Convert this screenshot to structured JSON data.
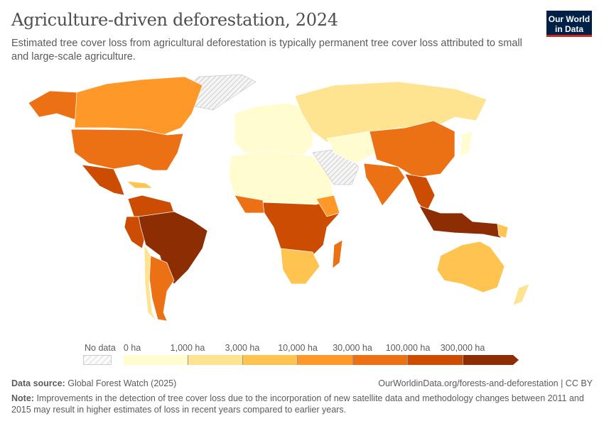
{
  "header": {
    "title": "Agriculture-driven deforestation, 2024",
    "subtitle": "Estimated tree cover loss from agricultural deforestation is typically permanent tree cover loss attributed to small and large-scale agriculture.",
    "logo": "Our World in Data"
  },
  "legend": {
    "no_data": "No data",
    "ticks": [
      "0 ha",
      "1,000 ha",
      "3,000 ha",
      "10,000 ha",
      "30,000 ha",
      "100,000 ha",
      "300,000 ha"
    ],
    "colors": [
      "#fffccf",
      "#fee391",
      "#fec44f",
      "#fe9929",
      "#ec7014",
      "#cc4c02",
      "#8c2d04"
    ]
  },
  "footer": {
    "source_label": "Data source:",
    "source": "Global Forest Watch (2025)",
    "url": "OurWorldinData.org/forests-and-deforestation | CC BY",
    "note_label": "Note:",
    "note": "Improvements in the detection of tree cover loss due to the incorporation of new satellite data and methodology changes between 2011 and 2015 may result in higher estimates of loss in recent years compared to earlier years."
  }
}
